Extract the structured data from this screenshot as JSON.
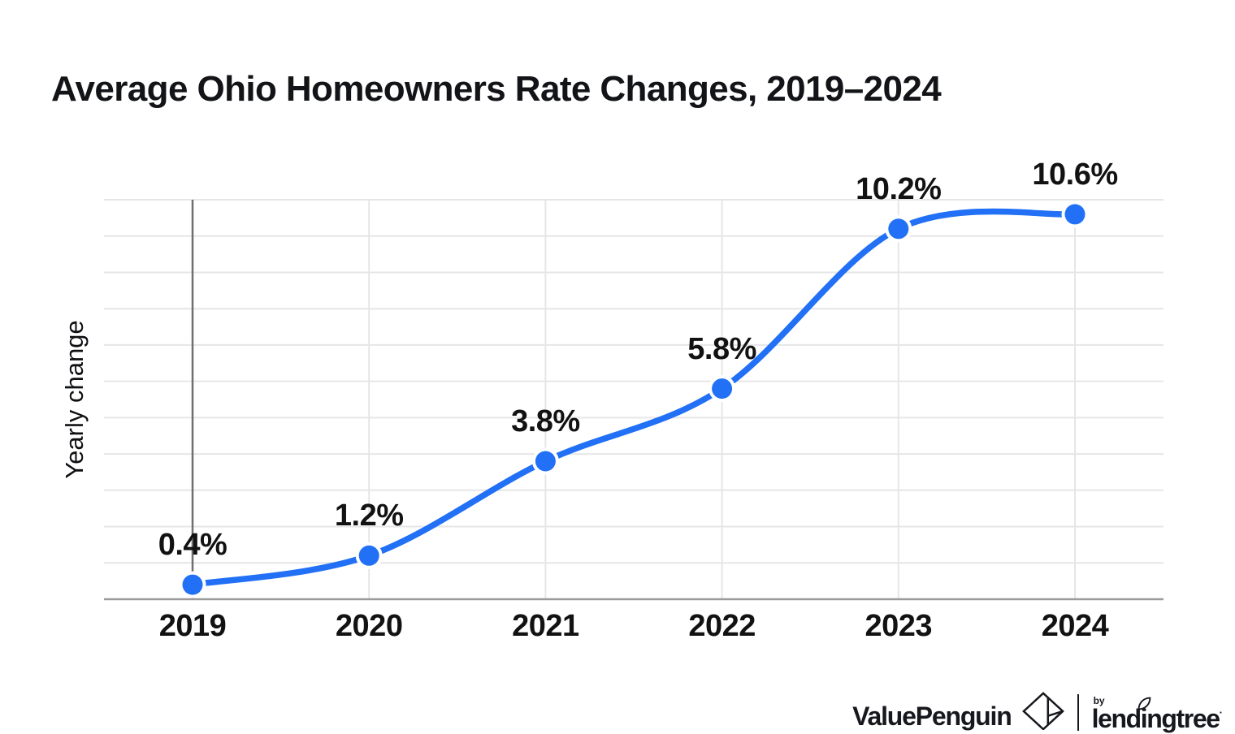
{
  "title": "Average Ohio Homeowners Rate Changes, 2019–2024",
  "chart_data": {
    "type": "line",
    "title": "Average Ohio Homeowners Rate Changes, 2019–2024",
    "categories": [
      "2019",
      "2020",
      "2021",
      "2022",
      "2023",
      "2024"
    ],
    "values": [
      0.4,
      1.2,
      3.8,
      5.8,
      10.2,
      10.6
    ],
    "point_labels": [
      "0.4%",
      "1.2%",
      "3.8%",
      "5.8%",
      "10.2%",
      "10.6%"
    ],
    "xlabel": "",
    "ylabel": "Yearly change",
    "ylim": [
      0,
      11
    ],
    "grid": true,
    "legend": false,
    "line_color": "#2170f5",
    "marker_color": "#2170f5",
    "grid_color": "#e6e6e6",
    "axis_color": "#9b9b9b",
    "first_gridline_color": "#6f6f6f",
    "label_color": "#121212"
  },
  "footer": {
    "brand": "ValuePenguin",
    "by": "by",
    "partner": "lendingtree",
    "trademark": "·",
    "icons": [
      "valuepenguin-diamond-icon",
      "lendingtree-leaf-icon"
    ]
  }
}
